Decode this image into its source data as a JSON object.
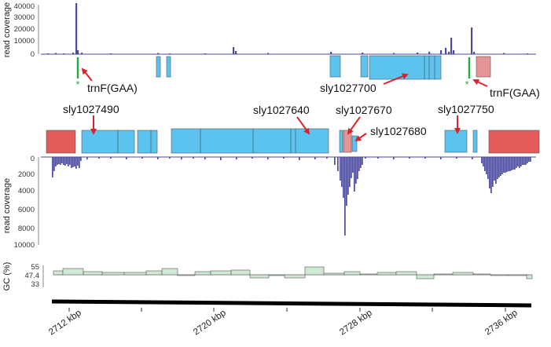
{
  "colors": {
    "coverage": "#4b4b96",
    "gene_blue": "#5bc3ee",
    "gene_red": "#e45b5b",
    "gene_pink": "#e59595",
    "trna": "#2aa84a",
    "arrow": "#d8242e",
    "gc_fill": "#cfe9d3"
  },
  "top_track": {
    "ylabel": "read coverage",
    "ticks": [
      "40000",
      "30000",
      "20000",
      "10000",
      "0"
    ]
  },
  "bottom_track": {
    "ylabel": "read coverage",
    "ticks": [
      "0",
      "2000",
      "4000",
      "6000",
      "8000",
      "10000"
    ]
  },
  "gc_track": {
    "ylabel": "GC (%)",
    "ticks": [
      "55",
      "47.4",
      "33"
    ]
  },
  "genes": {
    "trnF_left": "trnF(GAA)",
    "trnF_right": "trnF(GAA)",
    "asterisk": "*",
    "sly1027700": "sly1027700",
    "sly1027490": "sly1027490",
    "sly1027640": "sly1027640",
    "sly1027670": "sly1027670",
    "sly1027680": "sly1027680",
    "sly1027750": "sly1027750"
  },
  "x_axis": {
    "labels": [
      "2712 kbp",
      "2720 kbp",
      "2728 kbp",
      "2736 kbp"
    ]
  }
}
